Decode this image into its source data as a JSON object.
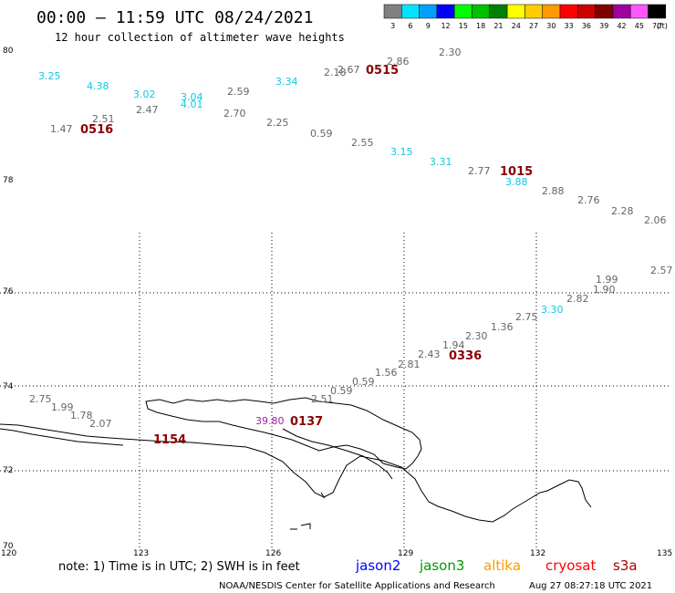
{
  "header": {
    "title": "00:00 – 11:59 UTC 08/24/2021",
    "subtitle": "12 hour collection of altimeter wave heights"
  },
  "legend": {
    "unit": "(ft)",
    "bins": [
      {
        "label": "3",
        "color": "#808080"
      },
      {
        "label": "6",
        "color": "#00e5ff"
      },
      {
        "label": "9",
        "color": "#00a0ff"
      },
      {
        "label": "12",
        "color": "#0000ff"
      },
      {
        "label": "15",
        "color": "#00ff00"
      },
      {
        "label": "18",
        "color": "#00c000"
      },
      {
        "label": "21",
        "color": "#008000"
      },
      {
        "label": "24",
        "color": "#ffff00"
      },
      {
        "label": "27",
        "color": "#ffcc00"
      },
      {
        "label": "30",
        "color": "#ff9900"
      },
      {
        "label": "33",
        "color": "#ff0000"
      },
      {
        "label": "36",
        "color": "#cc0000"
      },
      {
        "label": "39",
        "color": "#800000"
      },
      {
        "label": "42",
        "color": "#a000a0"
      },
      {
        "label": "45",
        "color": "#ff55ff"
      },
      {
        "label": "70",
        "color": "#000000"
      }
    ]
  },
  "axes": {
    "lat_labels": [
      "80",
      "78",
      "76",
      "74",
      "72",
      "70"
    ],
    "lon_labels": [
      "120",
      "123",
      "126",
      "129",
      "132",
      "135"
    ]
  },
  "observations": [
    {
      "text": "3.25",
      "color": "cyan"
    },
    {
      "text": "4.38",
      "color": "cyan"
    },
    {
      "text": "3.02",
      "color": "cyan"
    },
    {
      "text": "3.04",
      "color": "cyan"
    },
    {
      "text": "4.01",
      "color": "cyan"
    },
    {
      "text": "3.34",
      "color": "cyan"
    },
    {
      "text": "3.15",
      "color": "cyan"
    },
    {
      "text": "3.31",
      "color": "cyan"
    },
    {
      "text": "3.88",
      "color": "cyan"
    },
    {
      "text": "3.30",
      "color": "cyan"
    },
    {
      "text": "1.47",
      "color": "gray"
    },
    {
      "text": "2.51",
      "color": "gray"
    },
    {
      "text": "2.47",
      "color": "gray"
    },
    {
      "text": "2.59",
      "color": "gray"
    },
    {
      "text": "2.70",
      "color": "gray"
    },
    {
      "text": "2.25",
      "color": "gray"
    },
    {
      "text": "0.59",
      "color": "gray"
    },
    {
      "text": "2.55",
      "color": "gray"
    },
    {
      "text": "2.77",
      "color": "gray"
    },
    {
      "text": "2.88",
      "color": "gray"
    },
    {
      "text": "2.76",
      "color": "gray"
    },
    {
      "text": "2.28",
      "color": "gray"
    },
    {
      "text": "2.06",
      "color": "gray"
    },
    {
      "text": "2.18",
      "color": "gray"
    },
    {
      "text": "2.67",
      "color": "gray"
    },
    {
      "text": "2.86",
      "color": "gray"
    },
    {
      "text": "2.30",
      "color": "gray"
    },
    {
      "text": "2.57",
      "color": "gray"
    },
    {
      "text": "1.99",
      "color": "gray"
    },
    {
      "text": "1.90",
      "color": "gray"
    },
    {
      "text": "2.82",
      "color": "gray"
    },
    {
      "text": "2.75",
      "color": "gray"
    },
    {
      "text": "1.36",
      "color": "gray"
    },
    {
      "text": "2.30",
      "color": "gray"
    },
    {
      "text": "1.94",
      "color": "gray"
    },
    {
      "text": "2.43",
      "color": "gray"
    },
    {
      "text": "2.81",
      "color": "gray"
    },
    {
      "text": "1.56",
      "color": "gray"
    },
    {
      "text": "0.59",
      "color": "gray"
    },
    {
      "text": "0.59",
      "color": "gray"
    },
    {
      "text": "2.51",
      "color": "gray"
    },
    {
      "text": "2.75",
      "color": "gray"
    },
    {
      "text": "1.99",
      "color": "gray"
    },
    {
      "text": "1.78",
      "color": "gray"
    },
    {
      "text": "2.07",
      "color": "gray"
    },
    {
      "text": "39.80",
      "color": "magenta"
    }
  ],
  "pass_times": [
    "0515",
    "0516",
    "1015",
    "0336",
    "0137",
    "1154"
  ],
  "footer": {
    "note": "note: 1) Time is in UTC; 2) SWH is in feet",
    "satellites": [
      {
        "name": "jason2",
        "color": "#0000ff"
      },
      {
        "name": "jason3",
        "color": "#009900"
      },
      {
        "name": "altika",
        "color": "#ff9900"
      },
      {
        "name": "cryosat",
        "color": "#ff0000"
      },
      {
        "name": "s3a",
        "color": "#aa0000"
      }
    ],
    "credit": "NOAA/NESDIS Center for Satellite Applications and Research",
    "timestamp": "Aug 27 08:27:18 UTC 2021"
  }
}
